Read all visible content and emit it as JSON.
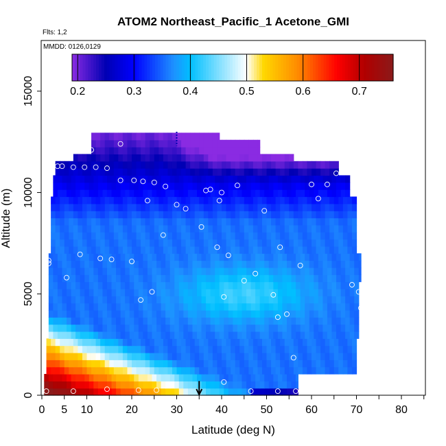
{
  "chart_data": {
    "type": "heatmap",
    "title": "ATOM2 Northeast_Pacific_1 Acetone_GMI",
    "flights_label": "Flts: 1,2",
    "dates_label": "MMDD: 0126,0129",
    "xlabel": "Latitude (deg N)",
    "ylabel": "Altitude (m)",
    "xlim": [
      0,
      85
    ],
    "ylim": [
      0,
      17500
    ],
    "x_ticks": [
      0,
      5,
      10,
      20,
      30,
      40,
      50,
      60,
      70,
      80
    ],
    "y_ticks": [
      0,
      5000,
      10000,
      15000
    ],
    "colorbar": {
      "range": [
        0.19,
        0.76
      ],
      "ticks": [
        0.2,
        0.3,
        0.4,
        0.5,
        0.6,
        0.7
      ],
      "colors": [
        "#8a2be2",
        "#0000b4",
        "#0000ff",
        "#1e90ff",
        "#00bfff",
        "#ffffff",
        "#ffd700",
        "#ff8c00",
        "#ff0000",
        "#b00000",
        "#8b1a1a"
      ]
    },
    "field_bounds": [
      {
        "alt": 0,
        "lat_min": 0.5,
        "lat_max": 57
      },
      {
        "alt": 900,
        "lat_min": 1,
        "lat_max": 70
      },
      {
        "alt": 2500,
        "lat_min": 1.5,
        "lat_max": 70.5
      },
      {
        "alt": 5500,
        "lat_min": 1.5,
        "lat_max": 71
      },
      {
        "alt": 7000,
        "lat_min": 2,
        "lat_max": 70
      },
      {
        "alt": 9500,
        "lat_min": 2.5,
        "lat_max": 68.5
      },
      {
        "alt": 10700,
        "lat_min": 3,
        "lat_max": 66
      },
      {
        "alt": 11300,
        "lat_min": 7,
        "lat_max": 56
      },
      {
        "alt": 11900,
        "lat_min": 11,
        "lat_max": 48.5
      },
      {
        "alt": 12500,
        "lat_min": 11,
        "lat_max": 39.5
      }
    ],
    "profile_marker": {
      "latitude": 35,
      "altitude": 700
    },
    "observations": [
      {
        "lat": 1,
        "alt": 200
      },
      {
        "lat": 7,
        "alt": 200
      },
      {
        "lat": 14.5,
        "alt": 300
      },
      {
        "lat": 21.5,
        "alt": 250
      },
      {
        "lat": 25.5,
        "alt": 250
      },
      {
        "lat": 40.5,
        "alt": 650
      },
      {
        "lat": 46.5,
        "alt": 200
      },
      {
        "lat": 52.5,
        "alt": 200
      },
      {
        "lat": 56.5,
        "alt": 200
      },
      {
        "lat": 69.5,
        "alt": 700
      },
      {
        "lat": 56,
        "alt": 1850
      },
      {
        "lat": 52.5,
        "alt": 3850
      },
      {
        "lat": 54.5,
        "alt": 4000
      },
      {
        "lat": 71,
        "alt": 4300
      },
      {
        "lat": 69,
        "alt": 5450
      },
      {
        "lat": 70.5,
        "alt": 5100
      },
      {
        "lat": 22,
        "alt": 4700
      },
      {
        "lat": 24.5,
        "alt": 5100
      },
      {
        "lat": 40.5,
        "alt": 4850
      },
      {
        "lat": 51.5,
        "alt": 4950
      },
      {
        "lat": 45,
        "alt": 5650
      },
      {
        "lat": 47.5,
        "alt": 6000
      },
      {
        "lat": 5.5,
        "alt": 5800
      },
      {
        "lat": 1.5,
        "alt": 6500
      },
      {
        "lat": 1.5,
        "alt": 6650
      },
      {
        "lat": 8.5,
        "alt": 6950
      },
      {
        "lat": 13,
        "alt": 6750
      },
      {
        "lat": 15.5,
        "alt": 6700
      },
      {
        "lat": 20,
        "alt": 6600
      },
      {
        "lat": 41.5,
        "alt": 6900
      },
      {
        "lat": 39,
        "alt": 7300
      },
      {
        "lat": 53,
        "alt": 7300
      },
      {
        "lat": 57.5,
        "alt": 6400
      },
      {
        "lat": 27,
        "alt": 7900
      },
      {
        "lat": 35.5,
        "alt": 8300
      },
      {
        "lat": 30,
        "alt": 9400
      },
      {
        "lat": 32,
        "alt": 9200
      },
      {
        "lat": 23.5,
        "alt": 9600
      },
      {
        "lat": 39.5,
        "alt": 9600
      },
      {
        "lat": 49.5,
        "alt": 9100
      },
      {
        "lat": 61.5,
        "alt": 9700
      },
      {
        "lat": 17.5,
        "alt": 10600
      },
      {
        "lat": 20.5,
        "alt": 10600
      },
      {
        "lat": 22.5,
        "alt": 10550
      },
      {
        "lat": 25,
        "alt": 10500
      },
      {
        "lat": 27.5,
        "alt": 10300
      },
      {
        "lat": 36.5,
        "alt": 10100
      },
      {
        "lat": 37.5,
        "alt": 10150
      },
      {
        "lat": 40,
        "alt": 10000
      },
      {
        "lat": 43.5,
        "alt": 10350
      },
      {
        "lat": 60,
        "alt": 10400
      },
      {
        "lat": 63.5,
        "alt": 10400
      },
      {
        "lat": 65.5,
        "alt": 10950
      },
      {
        "lat": 3.5,
        "alt": 11300
      },
      {
        "lat": 4.5,
        "alt": 11300
      },
      {
        "lat": 7,
        "alt": 11250
      },
      {
        "lat": 9.5,
        "alt": 11250
      },
      {
        "lat": 12,
        "alt": 11250
      },
      {
        "lat": 14.5,
        "alt": 11200
      },
      {
        "lat": 11,
        "alt": 12100
      },
      {
        "lat": 17.5,
        "alt": 12400
      }
    ]
  }
}
